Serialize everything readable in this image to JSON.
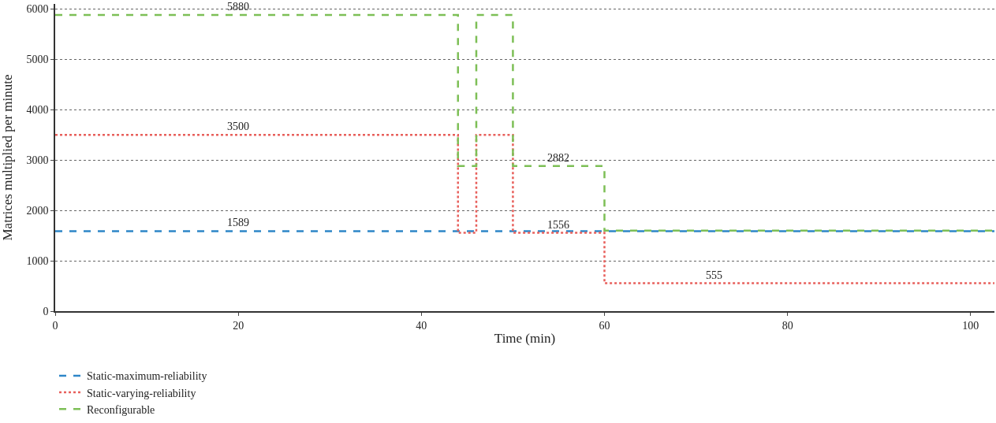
{
  "chart_data": {
    "type": "step",
    "xlabel": "Time (min)",
    "ylabel": "Matrices multiplied per minute",
    "x": [
      0,
      44,
      46,
      50,
      60,
      102.6
    ],
    "series": [
      {
        "name": "Static-maximum-reliability",
        "color": "#2e86c8",
        "line_style": "dashed",
        "values": [
          1589,
          1589,
          1589,
          1589,
          1589,
          1589
        ]
      },
      {
        "name": "Static-varying-reliability",
        "color": "#e8605c",
        "line_style": "dotted",
        "values": [
          3500,
          1556,
          3500,
          1556,
          555,
          555
        ]
      },
      {
        "name": "Reconfigurable",
        "color": "#7dbf56",
        "line_style": "dashed",
        "values": [
          5880,
          2882,
          5880,
          2882,
          1600,
          1600
        ]
      }
    ],
    "annotations": [
      {
        "text": "5880",
        "x": 20,
        "y": 5880
      },
      {
        "text": "3500",
        "x": 20,
        "y": 3500
      },
      {
        "text": "1589",
        "x": 20,
        "y": 1589
      },
      {
        "text": "2882",
        "x": 55,
        "y": 2882
      },
      {
        "text": "1556",
        "x": 55,
        "y": 1556
      },
      {
        "text": "555",
        "x": 72,
        "y": 555
      }
    ],
    "xlim": [
      0,
      102.6
    ],
    "xticks": [
      0,
      20,
      40,
      60,
      80,
      100
    ],
    "ylim": [
      0,
      6100
    ],
    "yticks": [
      0,
      1000,
      2000,
      3000,
      4000,
      5000,
      6000
    ],
    "grid": "y",
    "legend": "bottom left",
    "marker": "none"
  }
}
